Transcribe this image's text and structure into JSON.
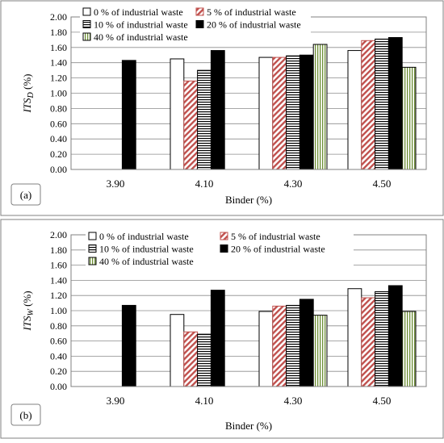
{
  "chart_data": [
    {
      "panel_label": "(a)",
      "type": "bar",
      "xlabel": "Binder (%)",
      "ylabel": "ITS",
      "ylabel_sub": "D",
      "ylabel_unit": " (%)",
      "ylim": [
        0,
        2.0
      ],
      "yticks": [
        "0.00",
        "0.20",
        "0.40",
        "0.60",
        "0.80",
        "1.00",
        "1.20",
        "1.40",
        "1.60",
        "1.80",
        "2.00"
      ],
      "grid": true,
      "legend_position": "top",
      "categories": [
        "3.90",
        "4.10",
        "4.30",
        "4.50"
      ],
      "series": [
        {
          "name": "0 % of industrial waste",
          "values": [
            null,
            1.45,
            1.47,
            1.56
          ]
        },
        {
          "name": "5 % of industrial waste",
          "values": [
            null,
            1.16,
            1.47,
            1.69
          ]
        },
        {
          "name": "10 % of industrial waste",
          "values": [
            null,
            1.3,
            1.49,
            1.71
          ]
        },
        {
          "name": "20 % of industrial waste",
          "values": [
            1.43,
            1.56,
            1.5,
            1.73
          ]
        },
        {
          "name": "40 % of industrial waste",
          "values": [
            null,
            null,
            1.64,
            1.34
          ]
        }
      ]
    },
    {
      "panel_label": "(b)",
      "type": "bar",
      "xlabel": "Binder (%)",
      "ylabel": "ITS",
      "ylabel_sub": "W",
      "ylabel_unit": " (%)",
      "ylim": [
        0,
        2.0
      ],
      "yticks": [
        "0.00",
        "0.20",
        "0.40",
        "0.60",
        "0.80",
        "1.00",
        "1.20",
        "1.40",
        "1.60",
        "1.80",
        "2.00"
      ],
      "grid": true,
      "legend_position": "top",
      "categories": [
        "3.90",
        "4.10",
        "4.30",
        "4.50"
      ],
      "series": [
        {
          "name": "0 % of industrial waste",
          "values": [
            null,
            0.95,
            0.99,
            1.29
          ]
        },
        {
          "name": "5 % of industrial waste",
          "values": [
            null,
            0.72,
            1.06,
            1.17
          ]
        },
        {
          "name": "10 % of industrial waste",
          "values": [
            null,
            0.69,
            1.07,
            1.25
          ]
        },
        {
          "name": "20 % of industrial waste",
          "values": [
            1.07,
            1.27,
            1.15,
            1.33
          ]
        },
        {
          "name": "40 % of industrial waste",
          "values": [
            null,
            null,
            0.94,
            0.99
          ]
        }
      ]
    }
  ],
  "series_styles": [
    {
      "pattern": "solid-white",
      "fill": "#ffffff",
      "stroke": "#000000"
    },
    {
      "pattern": "diagonal-red",
      "fill": "#c0504d",
      "stroke": "#c0504d"
    },
    {
      "pattern": "horizontal-black",
      "fill": "#000000",
      "stroke": "#000000"
    },
    {
      "pattern": "solid-black",
      "fill": "#000000",
      "stroke": "#000000"
    },
    {
      "pattern": "vertical-green",
      "fill": "#9bbb59",
      "stroke": "#000000"
    }
  ]
}
